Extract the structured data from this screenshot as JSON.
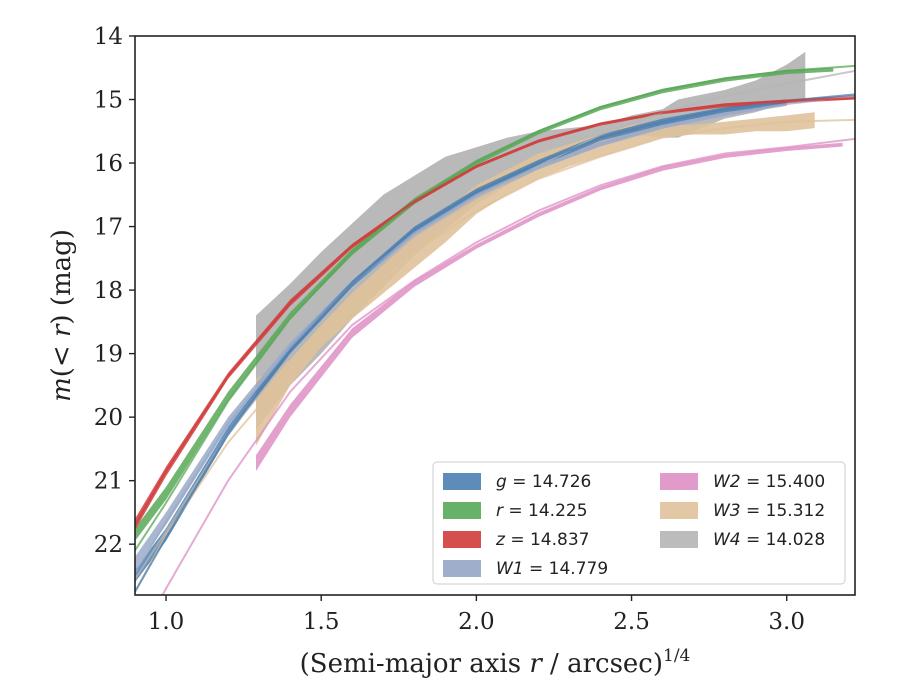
{
  "chart_data": {
    "type": "line",
    "title": "",
    "xlabel": "(Semi-major axis r / arcsec)",
    "xlabel_parts": {
      "open": "(Semi-major axis ",
      "var": "r",
      "rest": " / arcsec)",
      "exponent": "1/4"
    },
    "ylabel": "m(< r) (mag)",
    "ylabel_parts": {
      "var": "m",
      "inner": "(< ",
      "var2": "r",
      "rest": ") (mag)"
    },
    "xlim": [
      0.9,
      3.22
    ],
    "ylim": [
      22.8,
      14.0
    ],
    "y_inverted": true,
    "grid": false,
    "legend_position": "lower-right",
    "x_ticks": [
      {
        "v": 1.0,
        "label": "1.0"
      },
      {
        "v": 1.5,
        "label": "1.5"
      },
      {
        "v": 2.0,
        "label": "2.0"
      },
      {
        "v": 2.5,
        "label": "2.5"
      },
      {
        "v": 3.0,
        "label": "3.0"
      }
    ],
    "y_ticks": [
      {
        "v": 14,
        "label": "14"
      },
      {
        "v": 15,
        "label": "15"
      },
      {
        "v": 16,
        "label": "16"
      },
      {
        "v": 17,
        "label": "17"
      },
      {
        "v": 18,
        "label": "18"
      },
      {
        "v": 19,
        "label": "19"
      },
      {
        "v": 20,
        "label": "20"
      },
      {
        "v": 21,
        "label": "21"
      },
      {
        "v": 22,
        "label": "22"
      }
    ],
    "series": [
      {
        "name": "g = 14.726",
        "band": "g",
        "value": "14.726",
        "italic": true,
        "color": "#4c7fb0",
        "fit": {
          "x": [
            0.9,
            1.0,
            1.2,
            1.4,
            1.6,
            1.8,
            2.0,
            2.2,
            2.4,
            2.6,
            2.8,
            3.0,
            3.22
          ],
          "y": [
            22.75,
            21.9,
            20.25,
            18.95,
            17.9,
            17.05,
            16.45,
            16.0,
            15.6,
            15.35,
            15.15,
            15.02,
            14.92
          ]
        },
        "band_data": {
          "x": [
            0.9,
            1.0,
            1.2,
            1.4,
            1.6,
            1.8,
            2.0,
            2.2,
            2.4,
            2.6,
            2.8,
            3.0
          ],
          "y_lo": [
            22.4,
            21.75,
            20.15,
            18.88,
            17.85,
            17.0,
            16.4,
            15.95,
            15.55,
            15.3,
            15.12,
            15.0
          ],
          "y_hi": [
            22.6,
            21.95,
            20.3,
            19.0,
            17.95,
            17.1,
            16.5,
            16.05,
            15.65,
            15.4,
            15.2,
            15.08
          ]
        }
      },
      {
        "name": "r = 14.225",
        "band": "r",
        "value": "14.225",
        "italic": true,
        "color": "#58a858",
        "fit": {
          "x": [
            0.9,
            1.0,
            1.2,
            1.4,
            1.6,
            1.8,
            2.0,
            2.2,
            2.4,
            2.6,
            2.8,
            3.0,
            3.22
          ],
          "y": [
            22.1,
            21.35,
            19.75,
            18.45,
            17.4,
            16.6,
            15.98,
            15.5,
            15.12,
            14.85,
            14.67,
            14.55,
            14.47
          ]
        },
        "band_data": {
          "x": [
            0.9,
            1.0,
            1.2,
            1.4,
            1.6,
            1.8,
            2.0,
            2.2,
            2.4,
            2.6,
            2.8,
            3.0,
            3.15
          ],
          "y_lo": [
            21.75,
            21.1,
            19.6,
            18.35,
            17.35,
            16.55,
            15.95,
            15.48,
            15.1,
            14.83,
            14.65,
            14.53,
            14.5
          ],
          "y_hi": [
            21.95,
            21.3,
            19.75,
            18.45,
            17.45,
            16.65,
            16.03,
            15.55,
            15.17,
            14.9,
            14.72,
            14.6,
            14.56
          ]
        }
      },
      {
        "name": "z = 14.837",
        "band": "z",
        "value": "14.837",
        "italic": true,
        "color": "#d03c3c",
        "fit": {
          "x": [
            0.9,
            1.0,
            1.2,
            1.4,
            1.6,
            1.8,
            2.0,
            2.2,
            2.4,
            2.6,
            2.8,
            3.0,
            3.22
          ],
          "y": [
            21.7,
            20.85,
            19.35,
            18.2,
            17.3,
            16.6,
            16.05,
            15.65,
            15.38,
            15.2,
            15.08,
            15.02,
            14.98
          ]
        },
        "band_data": {
          "x": [
            0.9,
            1.0,
            1.2,
            1.4,
            1.6,
            1.8,
            2.0,
            2.2,
            2.4,
            2.6,
            2.8,
            3.0,
            3.22
          ],
          "y_lo": [
            21.6,
            20.78,
            19.3,
            18.15,
            17.27,
            16.58,
            16.03,
            15.63,
            15.36,
            15.18,
            15.06,
            15.0,
            14.93
          ],
          "y_hi": [
            21.78,
            20.93,
            19.4,
            18.25,
            17.34,
            16.64,
            16.08,
            15.68,
            15.41,
            15.23,
            15.12,
            15.06,
            15.0
          ]
        }
      },
      {
        "name": "W1 = 14.779",
        "band": "W1",
        "value": "14.779",
        "italic": true,
        "color": "#9aaac8",
        "fit": {
          "x": [
            0.9,
            1.0,
            1.2,
            1.4,
            1.6,
            1.8,
            2.0,
            2.2,
            2.4,
            2.6,
            2.8,
            3.0,
            3.22
          ],
          "y": [
            22.45,
            21.65,
            20.1,
            18.9,
            17.9,
            17.1,
            16.5,
            16.05,
            15.7,
            15.42,
            15.22,
            15.07,
            14.95
          ]
        },
        "band_data": {
          "x": [
            0.9,
            1.0,
            1.2,
            1.4,
            1.6,
            1.8,
            2.0,
            2.2,
            2.4,
            2.6,
            2.8,
            3.0
          ],
          "y_lo": [
            22.2,
            21.5,
            20.0,
            18.82,
            17.85,
            17.05,
            16.45,
            16.0,
            15.66,
            15.38,
            15.18,
            15.04
          ],
          "y_hi": [
            22.4,
            21.7,
            20.15,
            18.95,
            17.95,
            17.15,
            16.55,
            16.1,
            15.74,
            15.46,
            15.26,
            15.1
          ]
        }
      },
      {
        "name": "W2 = 15.400",
        "band": "W2",
        "value": "15.400",
        "italic": true,
        "color": "#de8fc4",
        "fit": {
          "x": [
            0.9,
            1.0,
            1.2,
            1.4,
            1.6,
            1.8,
            2.0,
            2.2,
            2.4,
            2.6,
            2.8,
            3.0,
            3.22
          ],
          "y": [
            23.6,
            22.7,
            21.0,
            19.6,
            18.55,
            17.85,
            17.25,
            16.75,
            16.35,
            16.05,
            15.85,
            15.75,
            15.62
          ]
        },
        "band_data": {
          "x": [
            1.29,
            1.4,
            1.6,
            1.8,
            2.0,
            2.2,
            2.4,
            2.6,
            2.8,
            3.0,
            3.18
          ],
          "y_lo": [
            20.6,
            19.8,
            18.6,
            17.85,
            17.28,
            16.78,
            16.37,
            16.05,
            15.86,
            15.75,
            15.68
          ],
          "y_hi": [
            20.85,
            20.0,
            18.75,
            17.95,
            17.35,
            16.85,
            16.43,
            16.12,
            15.92,
            15.81,
            15.74
          ]
        }
      },
      {
        "name": "W3 = 15.312",
        "band": "W3",
        "value": "15.312",
        "italic": true,
        "color": "#dfc29b",
        "fit": {
          "x": [
            0.9,
            1.0,
            1.2,
            1.4,
            1.6,
            1.8,
            2.0,
            2.2,
            2.4,
            2.6,
            2.8,
            3.0,
            3.22
          ],
          "y": [
            22.75,
            21.85,
            20.4,
            19.25,
            18.25,
            17.4,
            16.75,
            16.25,
            15.9,
            15.6,
            15.45,
            15.35,
            15.32
          ]
        },
        "band_data": {
          "x": [
            1.29,
            1.4,
            1.5,
            1.6,
            1.7,
            1.8,
            1.9,
            2.0,
            2.1,
            2.2,
            2.3,
            2.4,
            2.5,
            2.6,
            2.7,
            2.8,
            2.9,
            3.0,
            3.09
          ],
          "y_lo": [
            19.4,
            19.1,
            18.55,
            18.05,
            17.6,
            17.15,
            16.75,
            16.35,
            16.1,
            15.85,
            15.7,
            15.55,
            15.4,
            15.4,
            15.4,
            15.35,
            15.3,
            15.25,
            15.2
          ],
          "y_hi": [
            20.45,
            19.5,
            18.9,
            18.45,
            18.05,
            17.65,
            17.25,
            16.8,
            16.5,
            16.25,
            16.05,
            15.9,
            15.75,
            15.6,
            15.55,
            15.55,
            15.5,
            15.5,
            15.45
          ]
        }
      },
      {
        "name": "W4 = 14.028",
        "band": "W4",
        "value": "14.028",
        "italic": true,
        "color": "#b5b5b5",
        "fit": {
          "x": [
            0.9,
            1.0,
            1.2,
            1.4,
            1.6,
            1.8,
            2.0,
            2.2,
            2.4,
            2.6,
            2.8,
            3.0,
            3.22
          ],
          "y": [
            22.55,
            21.8,
            20.25,
            19.05,
            18.0,
            17.15,
            16.55,
            16.05,
            15.55,
            15.2,
            14.95,
            14.75,
            14.55
          ]
        },
        "band_data": {
          "x": [
            1.29,
            1.4,
            1.5,
            1.6,
            1.7,
            1.8,
            1.9,
            2.0,
            2.1,
            2.2,
            2.3,
            2.4,
            2.5,
            2.6,
            2.65,
            2.7,
            2.8,
            2.9,
            3.0,
            3.06
          ],
          "y_lo": [
            18.4,
            17.9,
            17.4,
            16.95,
            16.5,
            16.2,
            15.9,
            15.75,
            15.6,
            15.5,
            15.45,
            15.4,
            15.25,
            15.15,
            15.0,
            14.95,
            14.85,
            14.7,
            14.45,
            14.25
          ],
          "y_hi": [
            20.2,
            19.5,
            19.0,
            18.45,
            17.95,
            17.45,
            17.05,
            16.65,
            16.35,
            16.1,
            15.9,
            15.7,
            15.55,
            15.6,
            15.6,
            15.5,
            15.3,
            15.2,
            15.05,
            15.0
          ]
        }
      }
    ]
  }
}
